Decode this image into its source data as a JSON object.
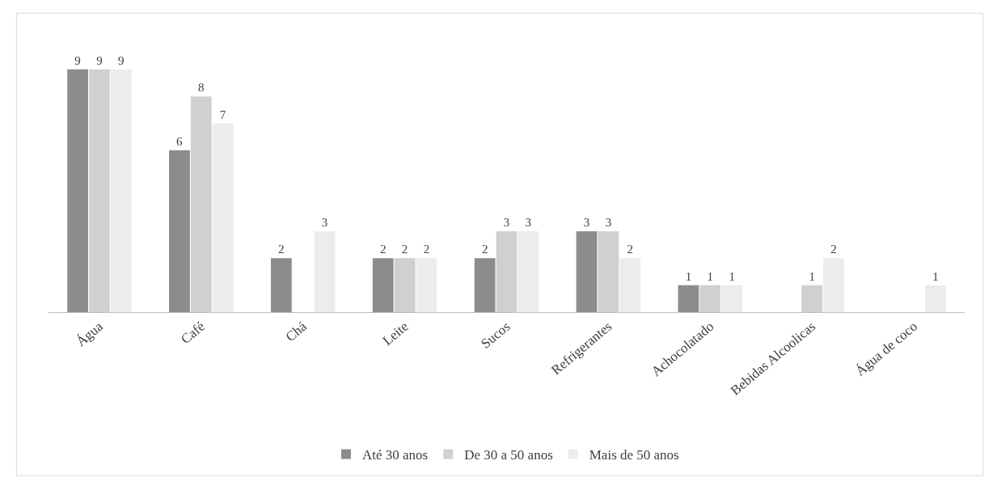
{
  "chart_data": {
    "type": "bar",
    "categories": [
      "Água",
      "Café",
      "Chá",
      "Leite",
      "Sucos",
      "Refrigerantes",
      "Achocolatado",
      "Bebidas Alcoolicas",
      "Água de coco"
    ],
    "series": [
      {
        "name": "Até 30 anos",
        "color": "#8c8c8c",
        "values": [
          9,
          6,
          2,
          2,
          2,
          3,
          1,
          null,
          null
        ]
      },
      {
        "name": "De 30 a 50 anos",
        "color": "#d0d0d0",
        "values": [
          9,
          8,
          null,
          2,
          3,
          3,
          1,
          1,
          null
        ]
      },
      {
        "name": "Mais de 50 anos",
        "color": "#ececec",
        "values": [
          9,
          7,
          3,
          2,
          3,
          2,
          1,
          2,
          1
        ]
      }
    ],
    "data_labels": true,
    "legend": "bottom",
    "tick_labels": "x"
  }
}
